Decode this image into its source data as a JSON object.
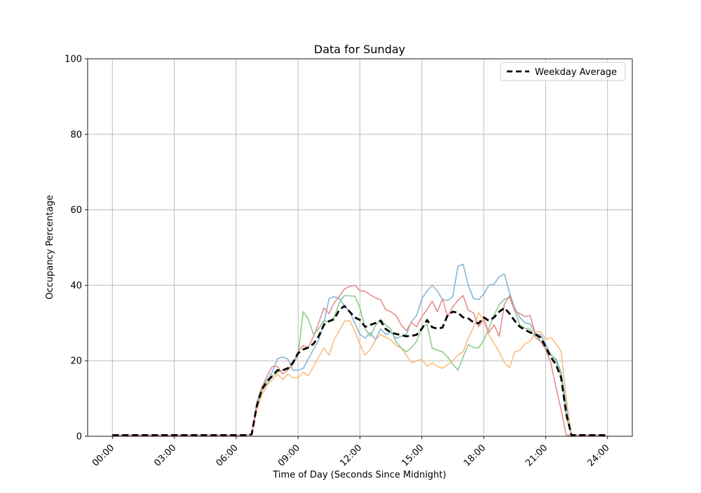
{
  "chart_data": {
    "type": "line",
    "title": "Data for Sunday",
    "xlabel": "Time of Day (Seconds Since Midnight)",
    "ylabel": "Occupancy Percentage",
    "grid": true,
    "legend_position": "upper right",
    "ylim": [
      0,
      100
    ],
    "xlim_hours": [
      -1.2,
      25.2
    ],
    "yticks": [
      0,
      20,
      40,
      60,
      80,
      100
    ],
    "xticks_hours": [
      0,
      3,
      6,
      9,
      12,
      15,
      18,
      21,
      24
    ],
    "xtick_labels": [
      "00:00",
      "03:00",
      "06:00",
      "09:00",
      "12:00",
      "15:00",
      "18:00",
      "21:00",
      "24:00"
    ],
    "colors": {
      "series_blue": "#85B5D7",
      "series_orange": "#FFBB7C",
      "series_green": "#8ECA8E",
      "series_red": "#E88C8C",
      "weekday_average": "#000000",
      "grid": "#BBBBBB",
      "spine": "#1a1a1a"
    },
    "legend": {
      "entries": [
        {
          "label": "Weekday Average",
          "style": "dashed",
          "color": "#000000"
        }
      ]
    },
    "x_hours": [
      0,
      0.5,
      1,
      1.5,
      2,
      2.5,
      3,
      3.5,
      4,
      4.5,
      5,
      5.5,
      6,
      6.5,
      6.75,
      7,
      7.25,
      7.5,
      7.75,
      8,
      8.25,
      8.5,
      8.75,
      9,
      9.25,
      9.5,
      9.75,
      10,
      10.25,
      10.5,
      10.75,
      11,
      11.25,
      11.5,
      11.75,
      12,
      12.25,
      12.5,
      12.75,
      13,
      13.25,
      13.5,
      13.75,
      14,
      14.25,
      14.5,
      14.75,
      15,
      15.25,
      15.5,
      15.75,
      16,
      16.25,
      16.5,
      16.75,
      17,
      17.25,
      17.5,
      17.75,
      18,
      18.25,
      18.5,
      18.75,
      19,
      19.25,
      19.5,
      19.75,
      20,
      20.25,
      20.5,
      20.75,
      21,
      21.25,
      21.5,
      21.75,
      22,
      22.25,
      22.5,
      23,
      23.5,
      23.9
    ],
    "series": [
      {
        "name": "series-blue",
        "style": "solid",
        "color_key": "series_blue",
        "width": 1.6,
        "values": [
          0.3,
          0.3,
          0.3,
          0.3,
          0.3,
          0.3,
          0.3,
          0.3,
          0.3,
          0.3,
          0.3,
          0.3,
          0.3,
          0.3,
          0.5,
          9,
          13,
          15,
          17,
          20.5,
          21,
          20.5,
          17.5,
          17.5,
          18,
          20.5,
          23,
          25.5,
          30,
          36.5,
          37,
          36.5,
          34.5,
          33,
          30,
          27,
          26,
          27.5,
          25.5,
          28.5,
          27,
          27.5,
          26,
          26.5,
          27,
          30.5,
          32,
          36.5,
          38.5,
          40,
          38.5,
          36.2,
          36,
          37,
          45,
          45.6,
          40,
          36.5,
          36.2,
          37.7,
          40,
          40.3,
          42.3,
          43,
          38,
          34,
          31.5,
          30,
          29.8,
          27.1,
          26.9,
          24.5,
          21.5,
          20.5,
          17,
          8,
          0.3,
          0.3,
          0.3,
          0.3,
          0.3
        ]
      },
      {
        "name": "series-orange",
        "style": "solid",
        "color_key": "series_orange",
        "width": 1.6,
        "values": [
          0.3,
          0.3,
          0.3,
          0.3,
          0.3,
          0.3,
          0.3,
          0.3,
          0.3,
          0.3,
          0.3,
          0.3,
          0.3,
          0.3,
          0.5,
          7,
          11,
          13.5,
          15,
          16.5,
          15,
          16.5,
          15.5,
          15.5,
          17,
          16,
          18.5,
          21,
          23.4,
          21.5,
          25.6,
          28,
          30.5,
          30.6,
          28,
          24.3,
          21.5,
          23,
          25.5,
          27,
          26.2,
          25.5,
          24,
          23.4,
          21.5,
          19.5,
          20,
          20.4,
          18.5,
          19.5,
          18.5,
          18,
          19,
          20,
          21.5,
          22.4,
          26,
          28.8,
          32.7,
          30.8,
          26.9,
          24.5,
          22.4,
          19.5,
          18.2,
          22.3,
          22.8,
          24.5,
          25.2,
          27.5,
          27.8,
          25.6,
          26.2,
          24.5,
          22.5,
          10,
          0.3,
          0.3,
          0.3,
          0.3,
          0.3
        ]
      },
      {
        "name": "series-green",
        "style": "solid",
        "color_key": "series_green",
        "width": 1.6,
        "values": [
          0.3,
          0.3,
          0.3,
          0.3,
          0.3,
          0.3,
          0.3,
          0.3,
          0.3,
          0.3,
          0.3,
          0.3,
          0.3,
          0.3,
          0.5,
          8,
          12,
          14,
          16,
          17,
          17.5,
          18,
          19,
          21.5,
          33,
          31,
          27,
          28.5,
          30.6,
          30.2,
          31.5,
          35.4,
          37.3,
          37.2,
          37.1,
          34,
          28.5,
          26.5,
          29.3,
          31,
          29.5,
          28.4,
          25,
          23.4,
          22.4,
          23.5,
          25.2,
          28.8,
          29.7,
          23.4,
          22.8,
          22.4,
          21,
          19.1,
          17.5,
          21,
          24.3,
          23.5,
          23.4,
          25.5,
          28.5,
          32.1,
          34.9,
          36.3,
          36.7,
          33.4,
          29.5,
          28.6,
          28.4,
          26.2,
          25.2,
          23.4,
          21.8,
          20,
          16,
          5,
          0.3,
          0.3,
          0.3,
          0.3,
          0.3
        ]
      },
      {
        "name": "series-red",
        "style": "solid",
        "color_key": "series_red",
        "width": 1.6,
        "values": [
          0.3,
          0.3,
          0.3,
          0.3,
          0.3,
          0.3,
          0.3,
          0.3,
          0.3,
          0.3,
          0.3,
          0.3,
          0.3,
          0.3,
          0.5,
          8,
          13,
          16,
          18.5,
          18.5,
          16.5,
          17.5,
          19,
          22.5,
          24,
          23.5,
          26.5,
          30,
          34,
          32.5,
          35.4,
          37.1,
          39,
          39.7,
          40,
          38.6,
          38.4,
          37.5,
          36.7,
          36.2,
          33.5,
          33,
          32,
          29.5,
          28,
          30.2,
          29,
          31.7,
          33.6,
          35.8,
          33,
          36.4,
          31.7,
          34.3,
          36,
          37.3,
          33.4,
          32.7,
          29,
          31,
          27.5,
          29.5,
          26.5,
          35,
          37.3,
          33.2,
          32.5,
          31.7,
          32,
          27.1,
          25.2,
          23,
          19.5,
          13,
          7,
          0.3,
          0.3,
          0.3,
          0.3,
          0.3,
          0.3
        ]
      },
      {
        "name": "weekday-average",
        "style": "dashed",
        "color_key": "weekday_average",
        "width": 2.8,
        "values": [
          0.3,
          0.3,
          0.3,
          0.3,
          0.3,
          0.3,
          0.3,
          0.3,
          0.3,
          0.3,
          0.3,
          0.3,
          0.3,
          0.3,
          0.5,
          8,
          12.5,
          14.5,
          16,
          17.5,
          17.5,
          18,
          19.5,
          22,
          23,
          23.5,
          24.5,
          26.5,
          29.5,
          30.5,
          31,
          33.5,
          34.5,
          33,
          31.5,
          30.8,
          29,
          29.5,
          30,
          30.6,
          28.4,
          27.5,
          27.1,
          26.8,
          26.5,
          26.6,
          26.9,
          28.5,
          30.8,
          28.9,
          28.5,
          28.8,
          32.1,
          33,
          32.7,
          31.5,
          31.2,
          30.2,
          29.9,
          31.5,
          30.6,
          31.5,
          33,
          34,
          32.5,
          30.6,
          29,
          28.2,
          27.5,
          27,
          26.2,
          23.7,
          21,
          19,
          15.5,
          6,
          0.3,
          0.3,
          0.3,
          0.3,
          0.3
        ]
      }
    ]
  }
}
